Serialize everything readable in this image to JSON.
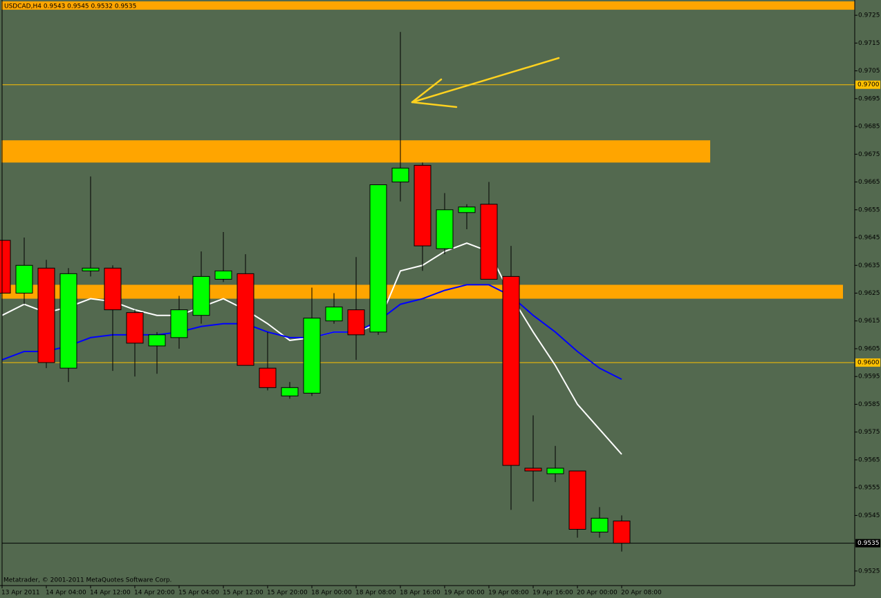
{
  "chart_data": {
    "type": "candlestick",
    "title": "USDCAD,H4  0.9543 0.9545 0.9532 0.9535",
    "footer": "Metatrader, © 2001-2011 MetaQuotes Software Corp.",
    "categories": [
      "13 Apr 2011",
      null,
      "14 Apr 04:00",
      null,
      "14 Apr 12:00",
      null,
      "14 Apr 20:00",
      null,
      "15 Apr 04:00",
      null,
      "15 Apr 12:00",
      null,
      "15 Apr 20:00",
      null,
      "18 Apr 00:00",
      null,
      "18 Apr 08:00",
      null,
      "18 Apr 16:00",
      null,
      "19 Apr 00:00",
      null,
      "19 Apr 08:00",
      null,
      "19 Apr 16:00",
      null,
      "20 Apr 00:00",
      null,
      "20 Apr 08:00"
    ],
    "open": [
      0.9644,
      0.9625,
      0.9634,
      0.9598,
      0.9633,
      0.9634,
      0.9618,
      0.9606,
      0.9609,
      0.9617,
      0.963,
      0.9632,
      0.9598,
      0.9588,
      0.9589,
      0.9615,
      0.9619,
      0.9611,
      0.9665,
      0.9671,
      0.9641,
      0.9654,
      0.9657,
      0.9631,
      0.9562,
      0.956,
      0.9561,
      0.9539,
      0.9543
    ],
    "high": [
      0.965,
      0.9645,
      0.9637,
      0.9634,
      0.9667,
      0.9635,
      0.9619,
      0.9611,
      0.9624,
      0.964,
      0.9647,
      0.9639,
      0.9611,
      0.9593,
      0.9627,
      0.9625,
      0.9638,
      0.9664,
      0.9719,
      0.9672,
      0.9661,
      0.9657,
      0.9665,
      0.9642,
      0.9581,
      0.957,
      0.9561,
      0.9548,
      0.9545
    ],
    "low": [
      0.9622,
      0.9621,
      0.9598,
      0.9593,
      0.9631,
      0.9597,
      0.9595,
      0.9596,
      0.9605,
      0.9614,
      0.9629,
      0.9599,
      0.959,
      0.9587,
      0.9588,
      0.9614,
      0.9601,
      0.961,
      0.9658,
      0.9633,
      0.9639,
      0.9648,
      0.963,
      0.9547,
      0.955,
      0.9557,
      0.9537,
      0.9537,
      0.9532
    ],
    "close": [
      0.9625,
      0.9635,
      0.96,
      0.9632,
      0.9634,
      0.9619,
      0.9607,
      0.961,
      0.9619,
      0.9631,
      0.9633,
      0.9599,
      0.9591,
      0.9591,
      0.9616,
      0.962,
      0.961,
      0.9664,
      0.967,
      0.9642,
      0.9655,
      0.9656,
      0.963,
      0.9563,
      0.9561,
      0.9562,
      0.954,
      0.9544,
      0.9535
    ],
    "up_color": "#00ff00",
    "down_color": "#ff0000",
    "lines": [
      {
        "color": "#ffffff",
        "values": [
          0.9617,
          0.9621,
          0.9618,
          0.962,
          0.9623,
          0.9622,
          0.9619,
          0.9617,
          0.9617,
          0.962,
          0.9623,
          0.9619,
          0.9614,
          0.9608,
          0.9609,
          0.9611,
          0.9611,
          0.9614,
          0.9633,
          0.9635,
          0.964,
          0.9643,
          0.964,
          0.9624,
          0.9611,
          0.9599,
          0.9585,
          0.9576,
          0.9567
        ]
      },
      {
        "color": "#0000ff",
        "values": [
          0.9601,
          0.9604,
          0.9604,
          0.9606,
          0.9609,
          0.961,
          0.961,
          0.961,
          0.9611,
          0.9613,
          0.9614,
          0.9614,
          0.9611,
          0.9609,
          0.9609,
          0.9611,
          0.9611,
          0.9615,
          0.9621,
          0.9623,
          0.9626,
          0.9628,
          0.9628,
          0.9624,
          0.9617,
          0.9611,
          0.9604,
          0.9598,
          0.9594
        ]
      }
    ],
    "zones": [
      {
        "from": 0.9727,
        "to": 0.973,
        "color": "#ffa500"
      },
      {
        "from": 0.9672,
        "to": 0.968,
        "color": "#ffa500"
      },
      {
        "from": 0.9623,
        "to": 0.9628,
        "color": "#ffa500"
      }
    ],
    "levels": [
      {
        "value": 0.97,
        "label": "0.9700"
      },
      {
        "value": 0.96,
        "label": "0.9600"
      }
    ],
    "level_color": "#ffc000",
    "current_price": 0.9535,
    "ylim": [
      0.952,
      0.973
    ],
    "yticks": [
      0.9725,
      0.9715,
      0.9705,
      0.9695,
      0.9685,
      0.9675,
      0.9665,
      0.9655,
      0.9645,
      0.9635,
      0.9625,
      0.9615,
      0.9605,
      0.9595,
      0.9585,
      0.9575,
      0.9565,
      0.9555,
      0.9545,
      0.9525
    ],
    "grid": false
  }
}
